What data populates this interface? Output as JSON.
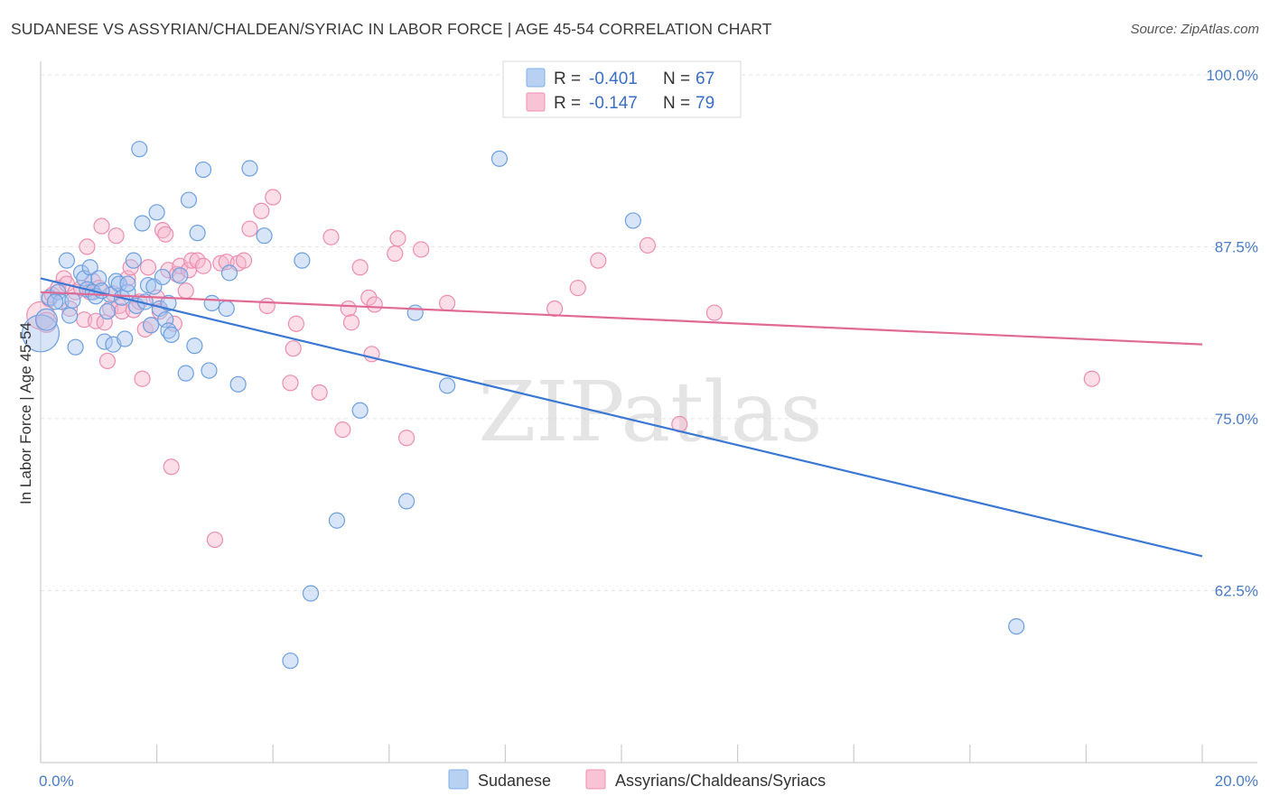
{
  "header": {
    "title": "SUDANESE VS ASSYRIAN/CHALDEAN/SYRIAC IN LABOR FORCE | AGE 45-54 CORRELATION CHART",
    "source": "Source: ZipAtlas.com"
  },
  "watermark": "ZIPatlas",
  "legend": {
    "r_label": "R =",
    "n_label": "N =",
    "entries": [
      {
        "name": "Sudanese",
        "r": "-0.401",
        "n": "67",
        "color": "#7faee8",
        "fill": "#b8d1f3"
      },
      {
        "name": "Assyrians/Chaldeans/Syriacs",
        "r": "-0.147",
        "n": "79",
        "color": "#f08fb0",
        "fill": "#f8c3d4"
      }
    ]
  },
  "chart_data": {
    "type": "scatter",
    "title": "SUDANESE VS ASSYRIAN/CHALDEAN/SYRIAC IN LABOR FORCE | AGE 45-54 CORRELATION CHART",
    "xlabel": "",
    "ylabel": "In Labor Force | Age 45-54",
    "xlim": [
      0,
      20
    ],
    "ylim": [
      50,
      101.5
    ],
    "x_ticks_labeled": [
      {
        "value": 0,
        "label": "0.0%"
      },
      {
        "value": 20,
        "label": "20.0%"
      }
    ],
    "y_ticks": [
      {
        "value": 100,
        "label": "100.0%"
      },
      {
        "value": 87.5,
        "label": "87.5%"
      },
      {
        "value": 75,
        "label": "75.0%"
      },
      {
        "value": 62.5,
        "label": "62.5%"
      }
    ],
    "grid": true,
    "legend_position": "top-center",
    "series": [
      {
        "name": "Sudanese",
        "color": "#3a78d4",
        "points": [
          [
            0.0,
            81.2,
            2.4
          ],
          [
            0.1,
            82.2,
            1.4
          ],
          [
            0.15,
            83.8,
            1
          ],
          [
            0.3,
            84.2,
            1
          ],
          [
            0.35,
            83.5,
            1
          ],
          [
            0.45,
            86.5,
            1
          ],
          [
            0.5,
            82.5,
            1
          ],
          [
            0.6,
            80.2,
            1
          ],
          [
            0.7,
            85.6,
            1
          ],
          [
            0.75,
            85.2,
            1
          ],
          [
            0.8,
            84.4,
            1
          ],
          [
            0.85,
            86.0,
            1
          ],
          [
            0.9,
            84.2,
            1
          ],
          [
            0.95,
            83.9,
            1
          ],
          [
            1.0,
            85.2,
            1
          ],
          [
            1.1,
            80.6,
            1
          ],
          [
            1.15,
            82.8,
            1
          ],
          [
            1.2,
            84.0,
            1
          ],
          [
            1.25,
            80.4,
            1
          ],
          [
            1.3,
            85.0,
            1
          ],
          [
            1.35,
            84.8,
            1
          ],
          [
            1.4,
            83.8,
            1
          ],
          [
            1.45,
            80.8,
            1
          ],
          [
            1.5,
            84.2,
            1
          ],
          [
            1.5,
            84.8,
            1
          ],
          [
            1.6,
            86.5,
            1
          ],
          [
            1.65,
            83.2,
            1
          ],
          [
            1.7,
            94.6,
            1
          ],
          [
            1.75,
            89.2,
            1
          ],
          [
            1.8,
            83.5,
            1
          ],
          [
            1.85,
            84.7,
            1
          ],
          [
            1.9,
            81.8,
            1
          ],
          [
            1.95,
            84.6,
            1
          ],
          [
            2.0,
            90.0,
            1
          ],
          [
            2.05,
            83.0,
            1
          ],
          [
            2.1,
            85.3,
            1
          ],
          [
            2.15,
            82.2,
            1
          ],
          [
            2.2,
            83.4,
            1
          ],
          [
            2.2,
            81.4,
            1
          ],
          [
            2.25,
            81.1,
            1
          ],
          [
            2.4,
            85.4,
            1
          ],
          [
            2.5,
            78.3,
            1
          ],
          [
            2.55,
            90.9,
            1
          ],
          [
            2.65,
            80.3,
            1
          ],
          [
            2.7,
            88.5,
            1
          ],
          [
            2.8,
            93.1,
            1
          ],
          [
            2.9,
            78.5,
            1
          ],
          [
            2.95,
            83.4,
            1
          ],
          [
            3.2,
            83.0,
            1
          ],
          [
            3.25,
            85.6,
            1
          ],
          [
            3.4,
            77.5,
            1
          ],
          [
            3.6,
            93.2,
            1
          ],
          [
            3.85,
            88.3,
            1
          ],
          [
            4.3,
            57.4,
            1
          ],
          [
            4.5,
            86.5,
            1
          ],
          [
            4.65,
            62.3,
            1
          ],
          [
            5.1,
            67.6,
            1
          ],
          [
            5.5,
            75.6,
            1
          ],
          [
            6.3,
            69.0,
            1
          ],
          [
            6.45,
            82.7,
            1
          ],
          [
            7.0,
            77.4,
            1
          ],
          [
            7.9,
            93.9,
            1
          ],
          [
            10.2,
            89.4,
            1
          ],
          [
            16.8,
            59.9,
            1
          ],
          [
            0.25,
            83.5,
            1
          ],
          [
            0.55,
            83.6,
            1
          ],
          [
            1.05,
            84.3,
            1
          ]
        ],
        "trend": {
          "x": [
            0,
            20
          ],
          "y": [
            85.2,
            65.0
          ]
        }
      },
      {
        "name": "Assyrians/Chaldeans/Syriacs",
        "color": "#e06a94",
        "points": [
          [
            0.0,
            82.5,
            1.8
          ],
          [
            0.1,
            82.0,
            1.3
          ],
          [
            0.15,
            83.7,
            1
          ],
          [
            0.2,
            84.0,
            1
          ],
          [
            0.3,
            84.5,
            1
          ],
          [
            0.4,
            85.2,
            1
          ],
          [
            0.45,
            84.8,
            1
          ],
          [
            0.5,
            83.0,
            1
          ],
          [
            0.6,
            84.2,
            1
          ],
          [
            0.7,
            84.5,
            1
          ],
          [
            0.75,
            82.2,
            1
          ],
          [
            0.8,
            87.5,
            1
          ],
          [
            0.85,
            84.2,
            1
          ],
          [
            0.9,
            85.0,
            1
          ],
          [
            0.95,
            82.1,
            1
          ],
          [
            1.0,
            84.5,
            1
          ],
          [
            1.05,
            89.0,
            1
          ],
          [
            1.1,
            82.0,
            1
          ],
          [
            1.15,
            79.2,
            1
          ],
          [
            1.2,
            83.0,
            1
          ],
          [
            1.3,
            88.3,
            1
          ],
          [
            1.35,
            83.2,
            1
          ],
          [
            1.4,
            82.8,
            1
          ],
          [
            1.5,
            85.2,
            1
          ],
          [
            1.55,
            86.0,
            1
          ],
          [
            1.6,
            82.9,
            1
          ],
          [
            1.7,
            83.5,
            1
          ],
          [
            1.75,
            77.9,
            1
          ],
          [
            1.8,
            81.5,
            1
          ],
          [
            1.85,
            86.0,
            1
          ],
          [
            1.9,
            81.8,
            1
          ],
          [
            2.0,
            83.8,
            1
          ],
          [
            2.05,
            82.8,
            1
          ],
          [
            2.1,
            88.7,
            1
          ],
          [
            2.15,
            88.4,
            1
          ],
          [
            2.2,
            85.8,
            1
          ],
          [
            2.25,
            71.5,
            1
          ],
          [
            2.3,
            81.9,
            1
          ],
          [
            2.35,
            85.5,
            1
          ],
          [
            2.4,
            86.1,
            1
          ],
          [
            2.5,
            84.3,
            1
          ],
          [
            2.55,
            85.8,
            1
          ],
          [
            2.6,
            86.5,
            1
          ],
          [
            2.7,
            86.5,
            1
          ],
          [
            2.8,
            86.1,
            1
          ],
          [
            3.0,
            66.2,
            1
          ],
          [
            3.1,
            86.3,
            1
          ],
          [
            3.2,
            86.4,
            1
          ],
          [
            3.4,
            86.3,
            1
          ],
          [
            3.5,
            86.5,
            1
          ],
          [
            3.6,
            88.8,
            1
          ],
          [
            3.8,
            90.1,
            1
          ],
          [
            3.9,
            83.2,
            1
          ],
          [
            4.0,
            91.1,
            1
          ],
          [
            4.3,
            77.6,
            1
          ],
          [
            4.35,
            80.1,
            1
          ],
          [
            4.4,
            81.9,
            1
          ],
          [
            4.8,
            76.9,
            1
          ],
          [
            5.0,
            88.2,
            1
          ],
          [
            5.2,
            74.2,
            1
          ],
          [
            5.3,
            83.0,
            1
          ],
          [
            5.35,
            82.0,
            1
          ],
          [
            5.5,
            86.0,
            1
          ],
          [
            5.65,
            83.8,
            1
          ],
          [
            5.7,
            79.7,
            1
          ],
          [
            5.75,
            83.3,
            1
          ],
          [
            6.1,
            87.0,
            1
          ],
          [
            6.15,
            88.1,
            1
          ],
          [
            6.3,
            73.6,
            1
          ],
          [
            6.55,
            87.3,
            1
          ],
          [
            7.0,
            83.4,
            1
          ],
          [
            8.85,
            83.0,
            1
          ],
          [
            9.25,
            84.5,
            1
          ],
          [
            9.6,
            86.5,
            1
          ],
          [
            10.45,
            87.6,
            1
          ],
          [
            11.0,
            74.6,
            1
          ],
          [
            11.6,
            82.7,
            1
          ],
          [
            18.1,
            77.9,
            1
          ],
          [
            1.25,
            84.1,
            1
          ]
        ],
        "trend": {
          "x": [
            0,
            20
          ],
          "y": [
            84.2,
            80.4
          ]
        }
      }
    ]
  }
}
